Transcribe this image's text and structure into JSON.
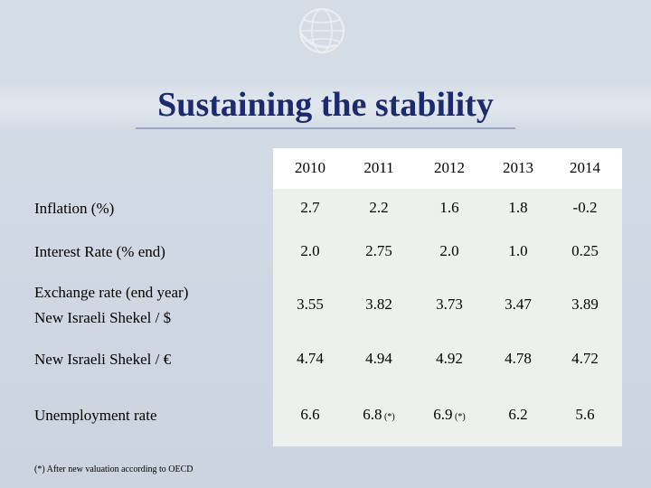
{
  "title": "Sustaining the stability",
  "logo": {
    "icon": "globe-icon"
  },
  "table": {
    "years": [
      "2010",
      "2011",
      "2012",
      "2013",
      "2014"
    ],
    "rows": [
      {
        "label": [
          "Inflation (%)"
        ],
        "values": [
          "2.7",
          "2.2",
          "1.6",
          "1.8",
          "-0.2"
        ],
        "notes": [
          "",
          "",
          "",
          "",
          ""
        ]
      },
      {
        "label": [
          "Interest Rate (% end)"
        ],
        "values": [
          "2.0",
          "2.75",
          "2.0",
          "1.0",
          "0.25"
        ],
        "notes": [
          "",
          "",
          "",
          "",
          ""
        ]
      },
      {
        "label": [
          "Exchange rate (end year)",
          "New Israeli Shekel / $"
        ],
        "values": [
          "3.55",
          "3.82",
          "3.73",
          "3.47",
          "3.89"
        ],
        "notes": [
          "",
          "",
          "",
          "",
          ""
        ]
      },
      {
        "label": [
          "New Israeli Shekel / €"
        ],
        "values": [
          "4.74",
          "4.94",
          "4.92",
          "4.78",
          "4.72"
        ],
        "notes": [
          "",
          "",
          "",
          "",
          ""
        ]
      },
      {
        "label": [
          "Unemployment rate"
        ],
        "values": [
          "6.6",
          "6.8",
          "6.9",
          "6.2",
          "5.6"
        ],
        "notes": [
          "",
          "(*)",
          "(*)",
          "",
          ""
        ]
      }
    ]
  },
  "footnote": "(*) After new valuation according to OECD",
  "colors": {
    "title": "#1c2a6e",
    "background": "#d0d8e2",
    "table": "#eef0ee"
  }
}
